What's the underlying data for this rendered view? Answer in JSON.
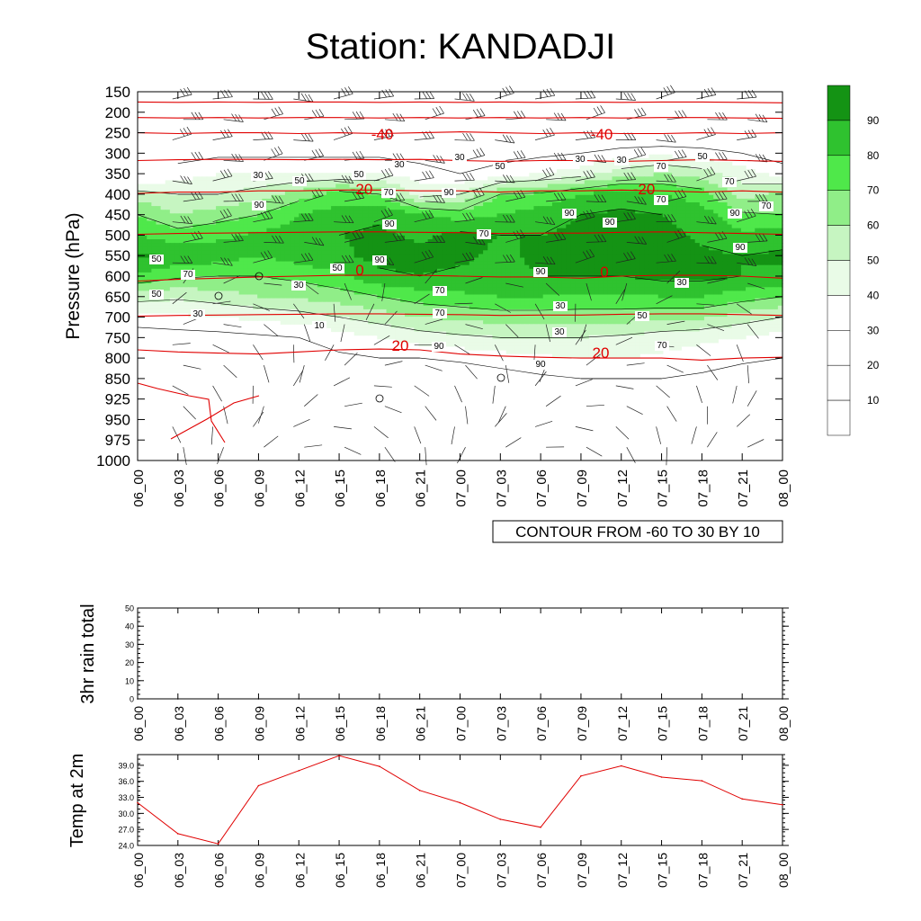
{
  "title": "Station: KANDADJI",
  "chart_data": [
    {
      "type": "heatmap",
      "ylabel": "Pressure (hPa)",
      "y_ticks": [
        "150",
        "200",
        "250",
        "300",
        "350",
        "400",
        "450",
        "500",
        "550",
        "600",
        "650",
        "700",
        "750",
        "800",
        "850",
        "925",
        "950",
        "975",
        "1000"
      ],
      "x_ticks": [
        "06_00",
        "06_03",
        "06_06",
        "06_09",
        "06_12",
        "06_15",
        "06_18",
        "06_21",
        "07_00",
        "07_03",
        "07_06",
        "07_09",
        "07_12",
        "07_15",
        "07_18",
        "07_21",
        "08_00"
      ],
      "fill_field": "relative humidity (%)",
      "fill_levels": [
        10,
        20,
        30,
        40,
        50,
        60,
        70,
        80,
        90
      ],
      "fill_colors": [
        "#ffffff",
        "#ffffff",
        "#ffffff",
        "#e9fbe7",
        "#c6f5c1",
        "#90ee88",
        "#4fe84a",
        "#2fc22f",
        "#149314"
      ],
      "humidity_grid_pressure": [
        150,
        250,
        350,
        400,
        450,
        500,
        550,
        600,
        650,
        700,
        750,
        800,
        850,
        925,
        1000
      ],
      "humidity_grid": [
        [
          12,
          12,
          12,
          12,
          12,
          12,
          12,
          12,
          12,
          12,
          12,
          12,
          12,
          12,
          12,
          12,
          12
        ],
        [
          15,
          15,
          15,
          15,
          15,
          15,
          15,
          15,
          15,
          15,
          15,
          15,
          15,
          15,
          15,
          15,
          15
        ],
        [
          25,
          35,
          40,
          40,
          40,
          40,
          40,
          35,
          30,
          35,
          40,
          45,
          55,
          60,
          55,
          45,
          35
        ],
        [
          55,
          50,
          50,
          55,
          65,
          75,
          70,
          45,
          50,
          70,
          72,
          80,
          85,
          80,
          75,
          55,
          65
        ],
        [
          70,
          60,
          65,
          70,
          80,
          85,
          88,
          82,
          75,
          80,
          85,
          90,
          92,
          90,
          85,
          72,
          70
        ],
        [
          80,
          75,
          78,
          82,
          85,
          90,
          92,
          88,
          93,
          90,
          90,
          92,
          95,
          93,
          88,
          82,
          85
        ],
        [
          92,
          88,
          85,
          80,
          85,
          88,
          93,
          93,
          92,
          88,
          92,
          93,
          95,
          93,
          92,
          90,
          92
        ],
        [
          78,
          72,
          70,
          70,
          73,
          78,
          88,
          90,
          88,
          87,
          90,
          90,
          90,
          93,
          93,
          90,
          88
        ],
        [
          55,
          52,
          55,
          60,
          62,
          65,
          70,
          75,
          78,
          80,
          80,
          78,
          78,
          80,
          80,
          75,
          70
        ],
        [
          35,
          38,
          40,
          42,
          45,
          50,
          55,
          60,
          62,
          65,
          65,
          65,
          65,
          62,
          62,
          55,
          50
        ],
        [
          25,
          25,
          26,
          28,
          30,
          35,
          40,
          45,
          48,
          50,
          50,
          50,
          48,
          45,
          42,
          40,
          35
        ],
        [
          18,
          18,
          20,
          22,
          25,
          28,
          30,
          30,
          32,
          35,
          38,
          40,
          40,
          38,
          35,
          32,
          30
        ],
        [
          12,
          14,
          15,
          15,
          18,
          20,
          22,
          22,
          22,
          25,
          28,
          30,
          30,
          30,
          28,
          25,
          22
        ],
        [
          8,
          8,
          10,
          10,
          12,
          14,
          15,
          15,
          15,
          15,
          15,
          18,
          20,
          20,
          18,
          15,
          12
        ],
        [
          5,
          5,
          5,
          6,
          6,
          8,
          8,
          8,
          8,
          8,
          8,
          8,
          10,
          10,
          8,
          6,
          5
        ]
      ],
      "temperature_lines": [
        {
          "label": "-40",
          "pressure": [
            250,
            252,
            250,
            250,
            252,
            250,
            252,
            250,
            248,
            250,
            252,
            250,
            252,
            252,
            250,
            252,
            250
          ]
        },
        {
          "label": "-20",
          "pressure": [
            398,
            395,
            395,
            392,
            392,
            390,
            390,
            392,
            392,
            395,
            392,
            392,
            390,
            392,
            395,
            392,
            395
          ]
        },
        {
          "label": "0",
          "pressure": [
            612,
            608,
            605,
            602,
            600,
            598,
            598,
            598,
            600,
            602,
            602,
            605,
            600,
            598,
            598,
            600,
            605
          ]
        },
        {
          "label": "20",
          "pressure": [
            780,
            785,
            788,
            790,
            785,
            780,
            778,
            780,
            790,
            795,
            798,
            800,
            800,
            800,
            805,
            800,
            798
          ]
        }
      ],
      "other_temperature_lines": [
        {
          "pressure": [
            175,
            176,
            175,
            176,
            175,
            175,
            176,
            175,
            176,
            175,
            176,
            175,
            176,
            175,
            175,
            176,
            177
          ]
        },
        {
          "pressure": [
            213,
            214,
            213,
            214,
            213,
            213,
            214,
            213,
            214,
            213,
            214,
            213,
            214,
            213,
            213,
            214,
            215
          ]
        },
        {
          "pressure": [
            318,
            316,
            315,
            315,
            316,
            315,
            316,
            315,
            318,
            320,
            318,
            318,
            320,
            318,
            316,
            318,
            320
          ]
        },
        {
          "pressure": [
            498,
            496,
            495,
            494,
            493,
            492,
            492,
            493,
            494,
            496,
            495,
            495,
            493,
            492,
            494,
            496,
            498
          ]
        },
        {
          "pressure": [
            698,
            696,
            695,
            694,
            693,
            692,
            692,
            693,
            694,
            696,
            695,
            695,
            693,
            692,
            692,
            694,
            696
          ]
        }
      ],
      "contour_note": "CONTOUR FROM -60 TO 30 BY 10",
      "colorbar_labels": [
        "10",
        "20",
        "30",
        "40",
        "50",
        "60",
        "70",
        "80",
        "90"
      ],
      "inline_labels": {
        "red": [
          "-40",
          "-40",
          "-20",
          "-20",
          "0",
          "0",
          "20",
          "20"
        ],
        "black": [
          "30",
          "50",
          "30",
          "30",
          "50",
          "30",
          "50",
          "70",
          "30",
          "50",
          "70",
          "70",
          "90",
          "90",
          "90",
          "90",
          "70",
          "90",
          "70",
          "90",
          "90",
          "90",
          "70",
          "50",
          "70",
          "50",
          "90",
          "30",
          "70",
          "70",
          "50",
          "30",
          "30",
          "50",
          "30",
          "10",
          "30",
          "90",
          "90",
          "70"
        ]
      }
    },
    {
      "type": "line",
      "ylabel": "3hr rain total",
      "ylim": [
        0,
        50
      ],
      "y_ticks": [
        "0",
        "10",
        "20",
        "30",
        "40",
        "50"
      ],
      "x": [
        "06_00",
        "06_03",
        "06_06",
        "06_09",
        "06_12",
        "06_15",
        "06_18",
        "06_21",
        "07_00",
        "07_03",
        "07_06",
        "07_09",
        "07_12",
        "07_15",
        "07_18",
        "07_21",
        "08_00"
      ],
      "values": [
        0,
        0,
        0,
        0,
        0,
        0,
        0,
        0,
        0,
        0,
        0,
        0,
        0,
        0,
        0,
        0,
        0
      ]
    },
    {
      "type": "line",
      "ylabel": "Temp at 2m",
      "ylim": [
        24,
        41
      ],
      "y_ticks": [
        "24.0",
        "27.0",
        "30.0",
        "33.0",
        "36.0",
        "39.0"
      ],
      "x": [
        "06_00",
        "06_03",
        "06_06",
        "06_09",
        "06_12",
        "06_15",
        "06_18",
        "06_21",
        "07_00",
        "07_03",
        "07_06",
        "07_09",
        "07_12",
        "07_15",
        "07_18",
        "07_21",
        "08_00"
      ],
      "values": [
        32.0,
        26.2,
        24.3,
        35.2,
        38.0,
        40.8,
        38.8,
        34.3,
        32.0,
        28.9,
        27.4,
        37.0,
        38.9,
        36.8,
        36.1,
        32.7,
        31.6
      ]
    }
  ],
  "colors": {
    "temperature_line": "#e00000",
    "contour_line": "#000000",
    "t2m_line": "#e00000"
  }
}
